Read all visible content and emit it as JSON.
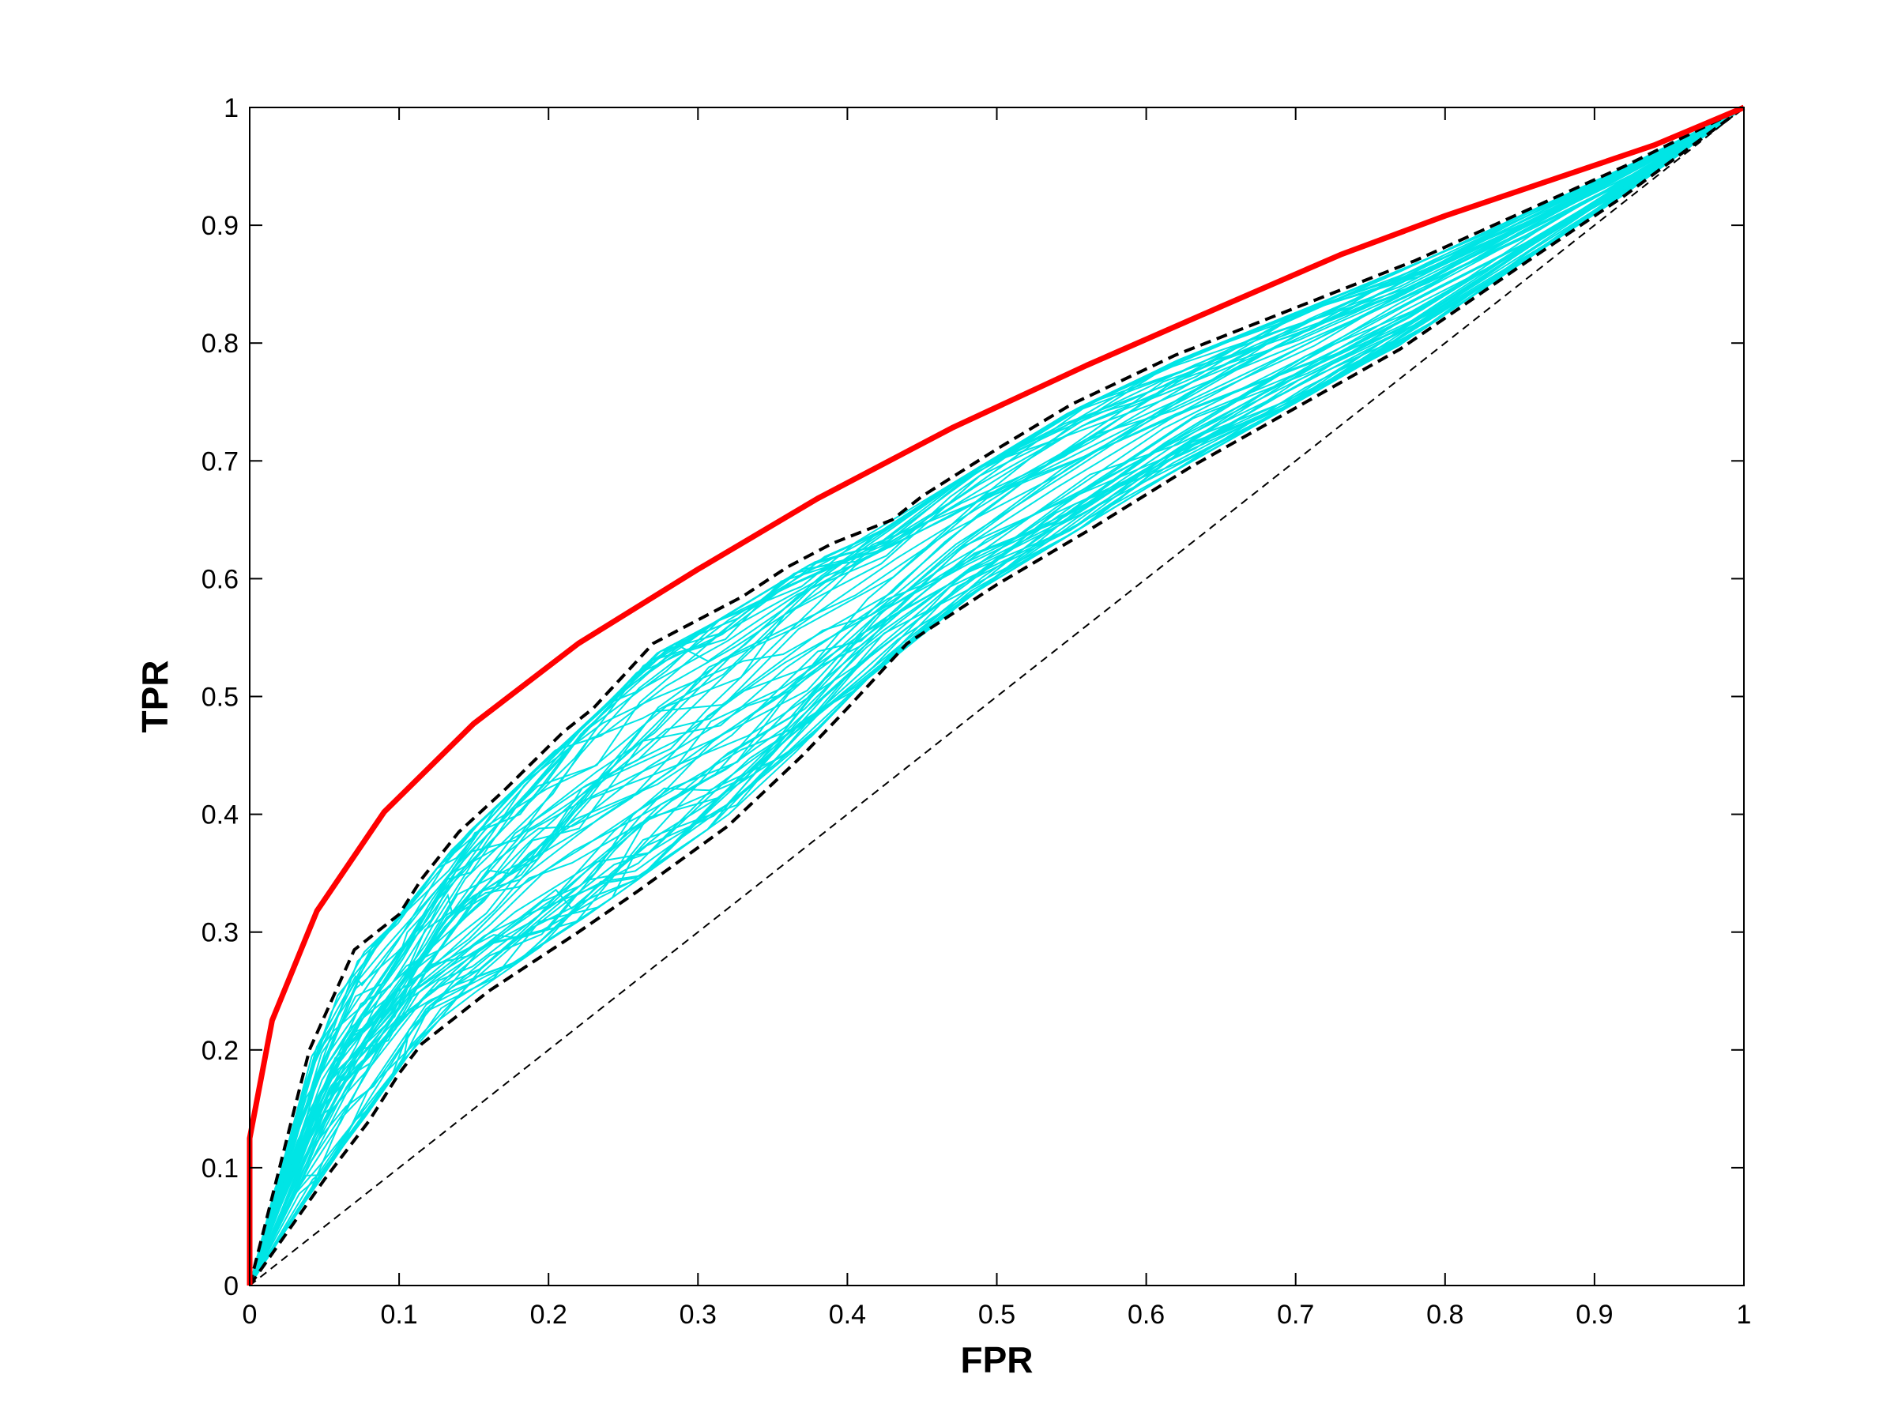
{
  "chart_data": {
    "type": "line",
    "title": "",
    "xlabel": "FPR",
    "ylabel": "TPR",
    "xlim": [
      0,
      1
    ],
    "ylim": [
      0,
      1
    ],
    "x_ticks": [
      "0",
      "0.1",
      "0.2",
      "0.3",
      "0.4",
      "0.5",
      "0.6",
      "0.7",
      "0.8",
      "0.9",
      "1"
    ],
    "y_ticks": [
      "0",
      "0.1",
      "0.2",
      "0.3",
      "0.4",
      "0.5",
      "0.6",
      "0.7",
      "0.8",
      "0.9",
      "1"
    ],
    "grid": false,
    "legend": "none",
    "colors": {
      "main_curve": "#ff0000",
      "resampled_curves": "#00e5e5",
      "envelope": "#000000",
      "diagonal": "#000000"
    },
    "resampled_curve_count": 60,
    "series": [
      {
        "role": "main-curve",
        "style": "solid-thick",
        "x": [
          0,
          0,
          0.015,
          0.045,
          0.09,
          0.15,
          0.22,
          0.3,
          0.38,
          0.47,
          0.56,
          0.65,
          0.73,
          0.8,
          0.87,
          0.94,
          1
        ],
        "y": [
          0,
          0.125,
          0.225,
          0.318,
          0.402,
          0.477,
          0.545,
          0.608,
          0.668,
          0.728,
          0.781,
          0.831,
          0.875,
          0.908,
          0.938,
          0.968,
          1
        ]
      },
      {
        "role": "upper-envelope",
        "style": "dashed-thick",
        "x": [
          0,
          0.04,
          0.07,
          0.1,
          0.115,
          0.14,
          0.17,
          0.21,
          0.23,
          0.27,
          0.33,
          0.36,
          0.39,
          0.43,
          0.45,
          0.5,
          0.55,
          0.62,
          0.7,
          0.78,
          0.85,
          0.92,
          1
        ],
        "y": [
          0,
          0.2,
          0.285,
          0.315,
          0.345,
          0.385,
          0.42,
          0.47,
          0.49,
          0.545,
          0.585,
          0.61,
          0.63,
          0.65,
          0.67,
          0.71,
          0.748,
          0.79,
          0.83,
          0.87,
          0.91,
          0.95,
          1
        ]
      },
      {
        "role": "lower-envelope",
        "style": "dashed-thick",
        "x": [
          0,
          0.05,
          0.08,
          0.1,
          0.115,
          0.16,
          0.22,
          0.26,
          0.32,
          0.37,
          0.4,
          0.44,
          0.5,
          0.56,
          0.63,
          0.7,
          0.77,
          0.85,
          0.92,
          1
        ],
        "y": [
          0,
          0.09,
          0.14,
          0.18,
          0.205,
          0.25,
          0.3,
          0.335,
          0.39,
          0.45,
          0.49,
          0.545,
          0.595,
          0.64,
          0.695,
          0.745,
          0.795,
          0.865,
          0.925,
          1
        ]
      },
      {
        "role": "diagonal",
        "style": "dashed-thin",
        "x": [
          0,
          1
        ],
        "y": [
          0,
          1
        ]
      }
    ]
  }
}
